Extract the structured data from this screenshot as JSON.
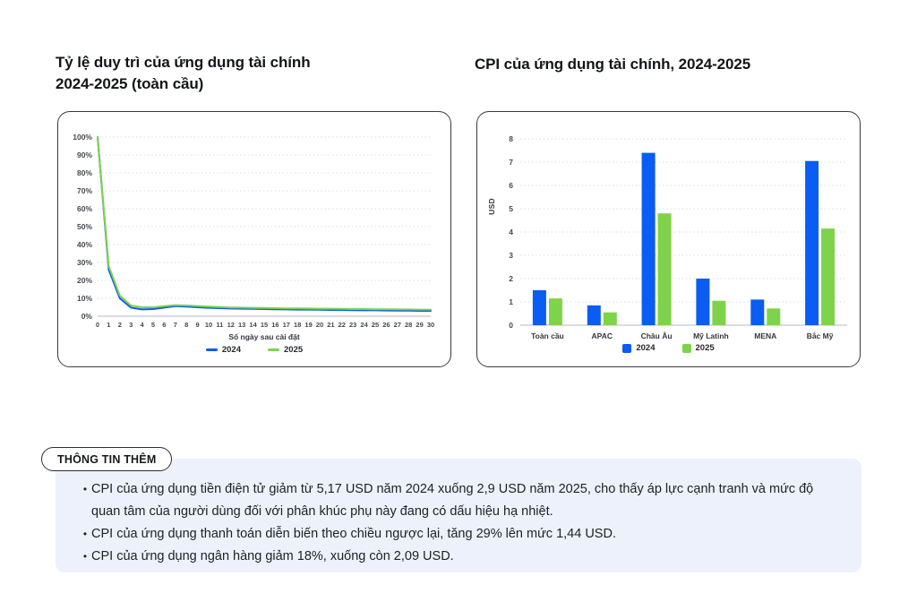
{
  "colors": {
    "accent_blue": "#0a5cf2",
    "accent_green": "#7ed34b",
    "grid": "#d8dce2",
    "baseline": "#c3c8d0",
    "info_bg": "#edf1fc"
  },
  "left_chart": {
    "title_line1": "Tỷ lệ duy trì của ứng dụng tài chính",
    "title_line2": "2024-2025 (toàn cầu)"
  },
  "right_chart": {
    "title": "CPI của ứng dụng tài chính, 2024-2025"
  },
  "info": {
    "label": "THÔNG TIN THÊM",
    "bullets": [
      "CPI của ứng dụng tiền điện tử giảm từ 5,17 USD năm 2024 xuống 2,9 USD năm 2025, cho thấy áp lực cạnh tranh và mức độ quan tâm của người dùng đối với phân khúc phụ này đang có dấu hiệu hạ nhiệt.",
      "CPI của ứng dụng thanh toán diễn biến theo chiều ngược lại, tăng 29% lên mức 1,44 USD.",
      "CPI của ứng dụng ngân hàng giảm 18%, xuống còn 2,09 USD."
    ]
  },
  "chart_data": [
    {
      "type": "line",
      "title": "Tỷ lệ duy trì của ứng dụng tài chính 2024-2025 (toàn cầu)",
      "xlabel": "Số ngày sau cài đặt",
      "ylabel": "",
      "ylim": [
        0,
        100
      ],
      "yticks": [
        "0%",
        "10%",
        "20%",
        "30%",
        "40%",
        "50%",
        "60%",
        "70%",
        "80%",
        "90%",
        "100%"
      ],
      "grid": true,
      "legend_position": "bottom",
      "x": [
        0,
        1,
        2,
        3,
        4,
        5,
        6,
        7,
        8,
        9,
        10,
        11,
        12,
        13,
        14,
        15,
        16,
        17,
        18,
        19,
        20,
        21,
        22,
        23,
        24,
        25,
        26,
        27,
        28,
        29,
        30
      ],
      "series": [
        {
          "name": "2024",
          "color": "#0a5cf2",
          "values": [
            100,
            26,
            10,
            4.8,
            3.8,
            4.0,
            4.8,
            5.6,
            5.4,
            5.0,
            4.7,
            4.5,
            4.3,
            4.2,
            4.1,
            4.0,
            3.9,
            3.8,
            3.7,
            3.7,
            3.6,
            3.5,
            3.5,
            3.4,
            3.3,
            3.3,
            3.2,
            3.1,
            3.1,
            3.0,
            3.0
          ]
        },
        {
          "name": "2025",
          "color": "#7ed34b",
          "values": [
            100,
            28,
            11.5,
            6.0,
            5.0,
            5.0,
            5.6,
            6.2,
            6.0,
            5.7,
            5.4,
            5.1,
            4.9,
            4.8,
            4.7,
            4.6,
            4.5,
            4.4,
            4.4,
            4.3,
            4.2,
            4.2,
            4.1,
            4.0,
            4.0,
            3.9,
            3.9,
            3.8,
            3.8,
            3.7,
            3.7
          ]
        }
      ]
    },
    {
      "type": "bar",
      "title": "CPI của ứng dụng tài chính, 2024-2025",
      "xlabel": "",
      "ylabel": "USD",
      "ylim": [
        0,
        8
      ],
      "yticks": [
        "0",
        "1",
        "2",
        "3",
        "4",
        "5",
        "6",
        "7",
        "8"
      ],
      "grid": true,
      "legend_position": "bottom",
      "categories": [
        "Toàn cầu",
        "APAC",
        "Châu Âu",
        "Mỹ Latinh",
        "MENA",
        "Bắc Mỹ"
      ],
      "series": [
        {
          "name": "2024",
          "color": "#0a5cf2",
          "values": [
            1.5,
            0.85,
            7.4,
            2.0,
            1.1,
            7.05
          ]
        },
        {
          "name": "2025",
          "color": "#7ed34b",
          "values": [
            1.15,
            0.55,
            4.8,
            1.05,
            0.72,
            4.15
          ]
        }
      ]
    }
  ]
}
